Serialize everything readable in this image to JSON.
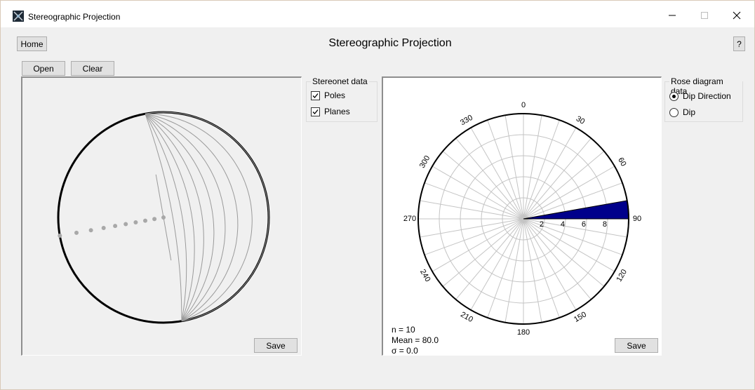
{
  "window": {
    "title": "Stereographic Projection"
  },
  "header": {
    "home_label": "Home",
    "help_label": "?",
    "page_title": "Stereographic Projection"
  },
  "toolbar": {
    "open_label": "Open",
    "clear_label": "Clear"
  },
  "stereonet_options": {
    "title": "Stereonet data",
    "poles": {
      "label": "Poles",
      "checked": true
    },
    "planes": {
      "label": "Planes",
      "checked": true
    }
  },
  "rose_options": {
    "title": "Rose diagram data",
    "dip_direction": {
      "label": "Dip Direction",
      "selected": true
    },
    "dip": {
      "label": "Dip",
      "selected": false
    }
  },
  "stereonet": {
    "save_label": "Save"
  },
  "rose": {
    "save_label": "Save",
    "stats": {
      "n": "n = 10",
      "mean": "Mean = 80.0",
      "sigma": "σ = 0.0"
    }
  },
  "chart_data": [
    {
      "type": "scatter",
      "title": "",
      "description_kind": "stereonet",
      "planes": {
        "dip_direction": 80,
        "dips": [
          90,
          80,
          70,
          60,
          50,
          40,
          30,
          20,
          10,
          0
        ]
      },
      "poles": {
        "trend": 260,
        "plunges": [
          0,
          10,
          20,
          30,
          40,
          50,
          60,
          70,
          80,
          90
        ]
      }
    },
    {
      "type": "bar",
      "title": "",
      "description_kind": "rose",
      "angle_labels": [
        "0",
        "30",
        "60",
        "90",
        "120",
        "150",
        "180",
        "210",
        "240",
        "270",
        "300",
        "330"
      ],
      "radial_labels": [
        "2",
        "4",
        "6",
        "8"
      ],
      "radial_max": 10,
      "bin_width_deg": 10,
      "bins": [
        {
          "start": 80,
          "end": 90,
          "count": 10,
          "color": "#00008b"
        }
      ]
    }
  ]
}
